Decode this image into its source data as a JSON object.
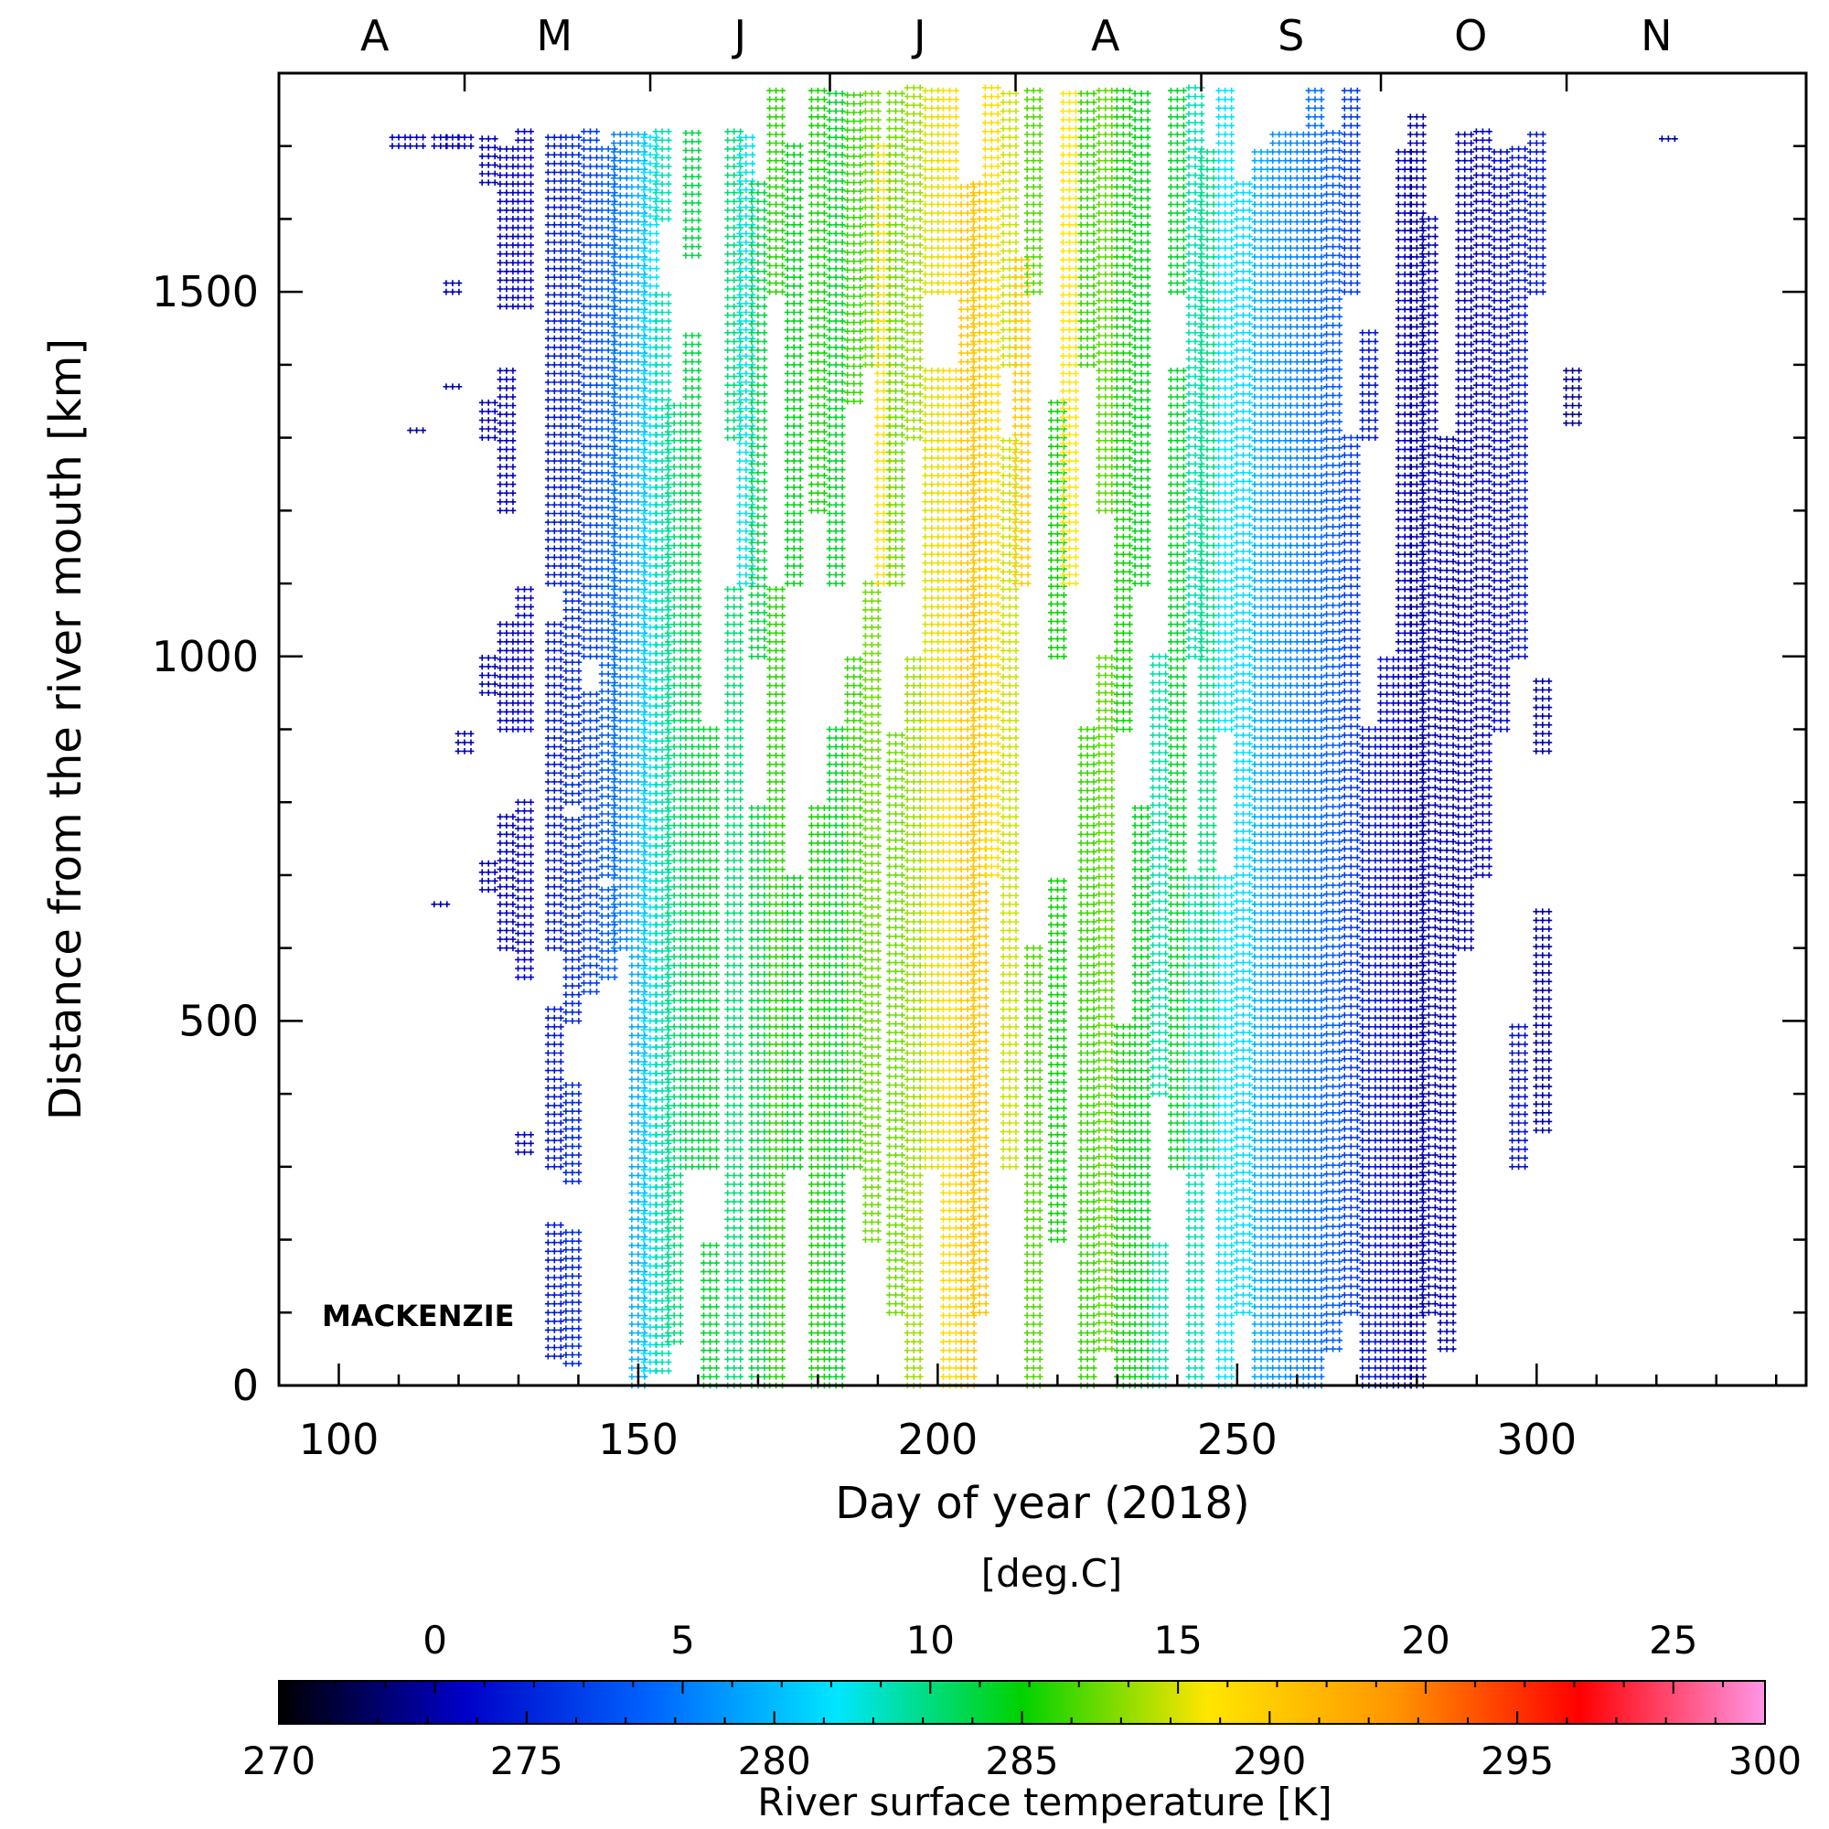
{
  "chart_data": {
    "type": "scatter",
    "title": "",
    "xlabel": "Day of year (2018)",
    "ylabel": "Distance from the river mouth [km]",
    "xlim": [
      90,
      345
    ],
    "ylim": [
      0,
      1800
    ],
    "x_ticks": [
      100,
      150,
      200,
      250,
      300
    ],
    "x_tick_labels": [
      "100",
      "150",
      "200",
      "250",
      "300"
    ],
    "y_ticks": [
      0,
      500,
      1000,
      1500
    ],
    "y_tick_labels": [
      "0",
      "500",
      "1000",
      "1500"
    ],
    "month_labels": [
      {
        "label": "A",
        "day": 106
      },
      {
        "label": "M",
        "day": 136
      },
      {
        "label": "J",
        "day": 167
      },
      {
        "label": "J",
        "day": 197
      },
      {
        "label": "A",
        "day": 228
      },
      {
        "label": "S",
        "day": 259
      },
      {
        "label": "O",
        "day": 289
      },
      {
        "label": "N",
        "day": 320
      }
    ],
    "month_boundaries": [
      121,
      152,
      182,
      213,
      244,
      274,
      305
    ],
    "annotation": "MACKENZIE",
    "marker": "+",
    "colorbar": {
      "label": "River surface temperature [K]",
      "unit_top": "[deg.C]",
      "range_k": [
        270,
        300
      ],
      "ticks_k": [
        270,
        275,
        280,
        285,
        290,
        295,
        300
      ],
      "tick_labels_k": [
        "270",
        "275",
        "280",
        "285",
        "290",
        "295",
        "300"
      ],
      "ticks_c": [
        0,
        5,
        10,
        15,
        20,
        25
      ],
      "tick_labels_c": [
        "0",
        "5",
        "10",
        "15",
        "20",
        "25"
      ],
      "colormap": [
        "#000000",
        "#0000c8",
        "#0064ff",
        "#00e6ff",
        "#00d200",
        "#ffe600",
        "#ff9600",
        "#ff0000",
        "#ff96e6"
      ]
    },
    "series": [
      {
        "day": 110,
        "temp_k": 273.6,
        "ranges": [
          [
            1700,
            1720
          ]
        ]
      },
      {
        "day": 113,
        "temp_k": 273.4,
        "ranges": [
          [
            1700,
            1720
          ],
          [
            1310,
            1320
          ]
        ]
      },
      {
        "day": 117,
        "temp_k": 273.3,
        "ranges": [
          [
            1700,
            1720
          ],
          [
            660,
            670
          ]
        ]
      },
      {
        "day": 119,
        "temp_k": 273.3,
        "ranges": [
          [
            1700,
            1720
          ],
          [
            1500,
            1520
          ],
          [
            1370,
            1380
          ]
        ]
      },
      {
        "day": 121,
        "temp_k": 273.5,
        "ranges": [
          [
            1700,
            1720
          ],
          [
            870,
            900
          ]
        ]
      },
      {
        "day": 125,
        "temp_k": 273.5,
        "ranges": [
          [
            1650,
            1720
          ],
          [
            1300,
            1350
          ],
          [
            950,
            1000
          ],
          [
            680,
            720
          ]
        ]
      },
      {
        "day": 128,
        "temp_k": 273.6,
        "ranges": [
          [
            1480,
            1700
          ],
          [
            1200,
            1400
          ],
          [
            900,
            1050
          ],
          [
            600,
            780
          ]
        ]
      },
      {
        "day": 131,
        "temp_k": 273.8,
        "ranges": [
          [
            1480,
            1720
          ],
          [
            900,
            1100
          ],
          [
            560,
            800
          ],
          [
            320,
            350
          ]
        ]
      },
      {
        "day": 136,
        "temp_k": 274.6,
        "ranges": [
          [
            1100,
            1720
          ],
          [
            600,
            1050
          ],
          [
            300,
            520
          ],
          [
            40,
            220
          ]
        ]
      },
      {
        "day": 139,
        "temp_k": 275.3,
        "ranges": [
          [
            800,
            1720
          ],
          [
            500,
            780
          ],
          [
            280,
            420
          ],
          [
            30,
            220
          ]
        ]
      },
      {
        "day": 142,
        "temp_k": 276.0,
        "ranges": [
          [
            1000,
            1720
          ],
          [
            540,
            950
          ]
        ]
      },
      {
        "day": 145,
        "temp_k": 277.2,
        "ranges": [
          [
            700,
            1700
          ],
          [
            560,
            680
          ]
        ]
      },
      {
        "day": 147,
        "temp_k": 278.2,
        "ranges": [
          [
            600,
            1720
          ]
        ]
      },
      {
        "day": 150,
        "temp_k": 279.6,
        "ranges": [
          [
            0,
            1720
          ]
        ]
      },
      {
        "day": 152,
        "temp_k": 281.2,
        "ranges": [
          [
            20,
            1720
          ]
        ]
      },
      {
        "day": 154,
        "temp_k": 282.4,
        "ranges": [
          [
            20,
            1500
          ],
          [
            1600,
            1720
          ]
        ]
      },
      {
        "day": 156,
        "temp_k": 283.3,
        "ranges": [
          [
            60,
            1350
          ]
        ]
      },
      {
        "day": 159,
        "temp_k": 284.0,
        "ranges": [
          [
            300,
            1450
          ],
          [
            1550,
            1720
          ]
        ]
      },
      {
        "day": 162,
        "temp_k": 284.3,
        "ranges": [
          [
            0,
            200
          ],
          [
            300,
            900
          ]
        ]
      },
      {
        "day": 166,
        "temp_k": 283.3,
        "ranges": [
          [
            0,
            1100
          ],
          [
            1300,
            1720
          ]
        ]
      },
      {
        "day": 168,
        "temp_k": 281.6,
        "ranges": [
          [
            1100,
            1720
          ]
        ]
      },
      {
        "day": 170,
        "temp_k": 284.0,
        "ranges": [
          [
            0,
            800
          ],
          [
            1000,
            1650
          ]
        ]
      },
      {
        "day": 173,
        "temp_k": 285.6,
        "ranges": [
          [
            0,
            1100
          ],
          [
            1500,
            1780
          ]
        ]
      },
      {
        "day": 176,
        "temp_k": 284.6,
        "ranges": [
          [
            300,
            700
          ],
          [
            1100,
            1700
          ]
        ]
      },
      {
        "day": 180,
        "temp_k": 285.3,
        "ranges": [
          [
            0,
            800
          ],
          [
            1200,
            1780
          ]
        ]
      },
      {
        "day": 183,
        "temp_k": 284.4,
        "ranges": [
          [
            0,
            900
          ],
          [
            1100,
            1780
          ]
        ]
      },
      {
        "day": 186,
        "temp_k": 285.8,
        "ranges": [
          [
            300,
            1000
          ],
          [
            1350,
            1780
          ]
        ]
      },
      {
        "day": 189,
        "temp_k": 286.6,
        "ranges": [
          [
            200,
            1100
          ],
          [
            1400,
            1780
          ]
        ]
      },
      {
        "day": 191,
        "temp_k": 289.1,
        "ranges": [
          [
            1100,
            1700
          ]
        ]
      },
      {
        "day": 193,
        "temp_k": 286.6,
        "ranges": [
          [
            100,
            900
          ],
          [
            1100,
            1780
          ]
        ]
      },
      {
        "day": 196,
        "temp_k": 287.3,
        "ranges": [
          [
            0,
            1000
          ],
          [
            1300,
            1780
          ]
        ]
      },
      {
        "day": 199,
        "temp_k": 288.2,
        "ranges": [
          [
            300,
            1400
          ],
          [
            1500,
            1780
          ]
        ]
      },
      {
        "day": 202,
        "temp_k": 289.3,
        "ranges": [
          [
            0,
            1400
          ],
          [
            1500,
            1780
          ]
        ]
      },
      {
        "day": 205,
        "temp_k": 290.2,
        "ranges": [
          [
            0,
            1650
          ]
        ]
      },
      {
        "day": 207,
        "temp_k": 290.4,
        "ranges": [
          [
            100,
            1650
          ]
        ]
      },
      {
        "day": 209,
        "temp_k": 289.2,
        "ranges": [
          [
            700,
            1780
          ]
        ]
      },
      {
        "day": 212,
        "temp_k": 288.0,
        "ranges": [
          [
            300,
            1300
          ],
          [
            1400,
            1780
          ]
        ]
      },
      {
        "day": 214,
        "temp_k": 290.0,
        "ranges": [
          [
            1100,
            1550
          ]
        ]
      },
      {
        "day": 216,
        "temp_k": 286.2,
        "ranges": [
          [
            0,
            600
          ],
          [
            1500,
            1780
          ]
        ]
      },
      {
        "day": 220,
        "temp_k": 285.1,
        "ranges": [
          [
            200,
            700
          ],
          [
            1000,
            1350
          ]
        ]
      },
      {
        "day": 222,
        "temp_k": 288.8,
        "ranges": [
          [
            1100,
            1780
          ]
        ]
      },
      {
        "day": 225,
        "temp_k": 285.8,
        "ranges": [
          [
            0,
            900
          ],
          [
            1400,
            1780
          ]
        ]
      },
      {
        "day": 228,
        "temp_k": 286.4,
        "ranges": [
          [
            50,
            1000
          ],
          [
            1200,
            1780
          ]
        ]
      },
      {
        "day": 231,
        "temp_k": 285.2,
        "ranges": [
          [
            0,
            500
          ],
          [
            900,
            1780
          ]
        ]
      },
      {
        "day": 234,
        "temp_k": 284.6,
        "ranges": [
          [
            0,
            800
          ],
          [
            1100,
            1780
          ]
        ]
      },
      {
        "day": 237,
        "temp_k": 282.5,
        "ranges": [
          [
            0,
            200
          ],
          [
            400,
            1000
          ]
        ]
      },
      {
        "day": 240,
        "temp_k": 284.4,
        "ranges": [
          [
            300,
            1400
          ],
          [
            1500,
            1780
          ]
        ]
      },
      {
        "day": 243,
        "temp_k": 282.4,
        "ranges": [
          [
            0,
            700
          ],
          [
            1000,
            1780
          ]
        ]
      },
      {
        "day": 245,
        "temp_k": 283.2,
        "ranges": [
          [
            300,
            1700
          ]
        ]
      },
      {
        "day": 248,
        "temp_k": 281.2,
        "ranges": [
          [
            0,
            700
          ],
          [
            900,
            1780
          ]
        ]
      },
      {
        "day": 251,
        "temp_k": 281.0,
        "ranges": [
          [
            100,
            1650
          ]
        ]
      },
      {
        "day": 254,
        "temp_k": 279.6,
        "ranges": [
          [
            0,
            1700
          ]
        ]
      },
      {
        "day": 257,
        "temp_k": 278.8,
        "ranges": [
          [
            0,
            1720
          ]
        ]
      },
      {
        "day": 260,
        "temp_k": 278.4,
        "ranges": [
          [
            0,
            1720
          ]
        ]
      },
      {
        "day": 263,
        "temp_k": 277.8,
        "ranges": [
          [
            0,
            1780
          ]
        ]
      },
      {
        "day": 266,
        "temp_k": 277.2,
        "ranges": [
          [
            50,
            1720
          ]
        ]
      },
      {
        "day": 269,
        "temp_k": 276.0,
        "ranges": [
          [
            100,
            1300
          ],
          [
            1500,
            1780
          ]
        ]
      },
      {
        "day": 272,
        "temp_k": 274.6,
        "ranges": [
          [
            0,
            900
          ],
          [
            1300,
            1450
          ]
        ]
      },
      {
        "day": 275,
        "temp_k": 274.0,
        "ranges": [
          [
            0,
            1000
          ]
        ]
      },
      {
        "day": 278,
        "temp_k": 273.6,
        "ranges": [
          [
            0,
            1700
          ]
        ]
      },
      {
        "day": 280,
        "temp_k": 273.2,
        "ranges": [
          [
            0,
            1750
          ]
        ]
      },
      {
        "day": 282,
        "temp_k": 273.4,
        "ranges": [
          [
            100,
            1600
          ]
        ]
      },
      {
        "day": 285,
        "temp_k": 273.2,
        "ranges": [
          [
            50,
            1300
          ]
        ]
      },
      {
        "day": 288,
        "temp_k": 273.4,
        "ranges": [
          [
            600,
            1720
          ]
        ]
      },
      {
        "day": 291,
        "temp_k": 273.6,
        "ranges": [
          [
            700,
            1720
          ]
        ]
      },
      {
        "day": 294,
        "temp_k": 274.0,
        "ranges": [
          [
            900,
            1700
          ]
        ]
      },
      {
        "day": 297,
        "temp_k": 274.4,
        "ranges": [
          [
            1000,
            1700
          ],
          [
            300,
            500
          ]
        ]
      },
      {
        "day": 300,
        "temp_k": 274.6,
        "ranges": [
          [
            1500,
            1720
          ]
        ]
      },
      {
        "day": 301,
        "temp_k": 273.1,
        "ranges": [
          [
            350,
            650
          ],
          [
            870,
            970
          ]
        ]
      },
      {
        "day": 306,
        "temp_k": 272.6,
        "ranges": [
          [
            1320,
            1400
          ]
        ]
      },
      {
        "day": 322,
        "temp_k": 273.1,
        "ranges": [
          [
            1710,
            1720
          ]
        ]
      }
    ]
  }
}
